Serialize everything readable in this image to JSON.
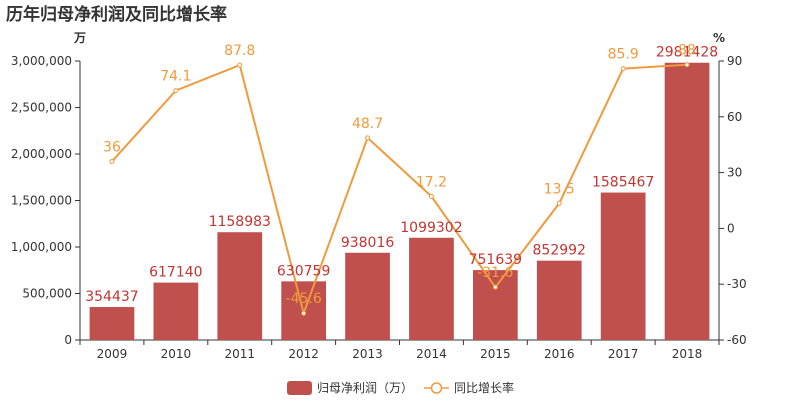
{
  "chart_data": {
    "type": "bar",
    "title": "历年归母净利润及同比增长率",
    "categories": [
      "2009",
      "2010",
      "2011",
      "2012",
      "2013",
      "2014",
      "2015",
      "2016",
      "2017",
      "2018"
    ],
    "series": [
      {
        "name": "归母净利润（万）",
        "type": "bar",
        "axis": "left",
        "values": [
          354437,
          617140,
          1158983,
          630759,
          938016,
          1099302,
          751639,
          852992,
          1585467,
          2981428
        ],
        "color": "#c0504d"
      },
      {
        "name": "同比增长率",
        "type": "line",
        "axis": "right",
        "values": [
          36,
          74.1,
          87.8,
          -45.6,
          48.7,
          17.2,
          -31.6,
          13.5,
          85.9,
          88
        ],
        "color": "#f09a3e"
      }
    ],
    "left_axis": {
      "unit": "万",
      "min": 0,
      "max": 3000000,
      "ticks": [
        0,
        500000,
        1000000,
        1500000,
        2000000,
        2500000,
        3000000
      ],
      "tick_labels": [
        "0",
        "500,000",
        "1,000,000",
        "1,500,000",
        "2,000,000",
        "2,500,000",
        "3,000,000"
      ]
    },
    "right_axis": {
      "unit": "%",
      "min": -60,
      "max": 90,
      "ticks": [
        -60,
        -30,
        0,
        30,
        60,
        90
      ],
      "tick_labels": [
        "-60",
        "-30",
        "0",
        "30",
        "60",
        "90"
      ]
    },
    "bar_labels": [
      "354437",
      "617140",
      "1158983",
      "630759",
      "938016",
      "1099302",
      "751639",
      "852992",
      "1585467",
      "2981428"
    ],
    "line_labels": [
      "36",
      "74.1",
      "87.8",
      "-45.6",
      "48.7",
      "17.2",
      "-31.6",
      "13.5",
      "85.9",
      "88"
    ],
    "grid": false,
    "legend_position": "bottom"
  }
}
